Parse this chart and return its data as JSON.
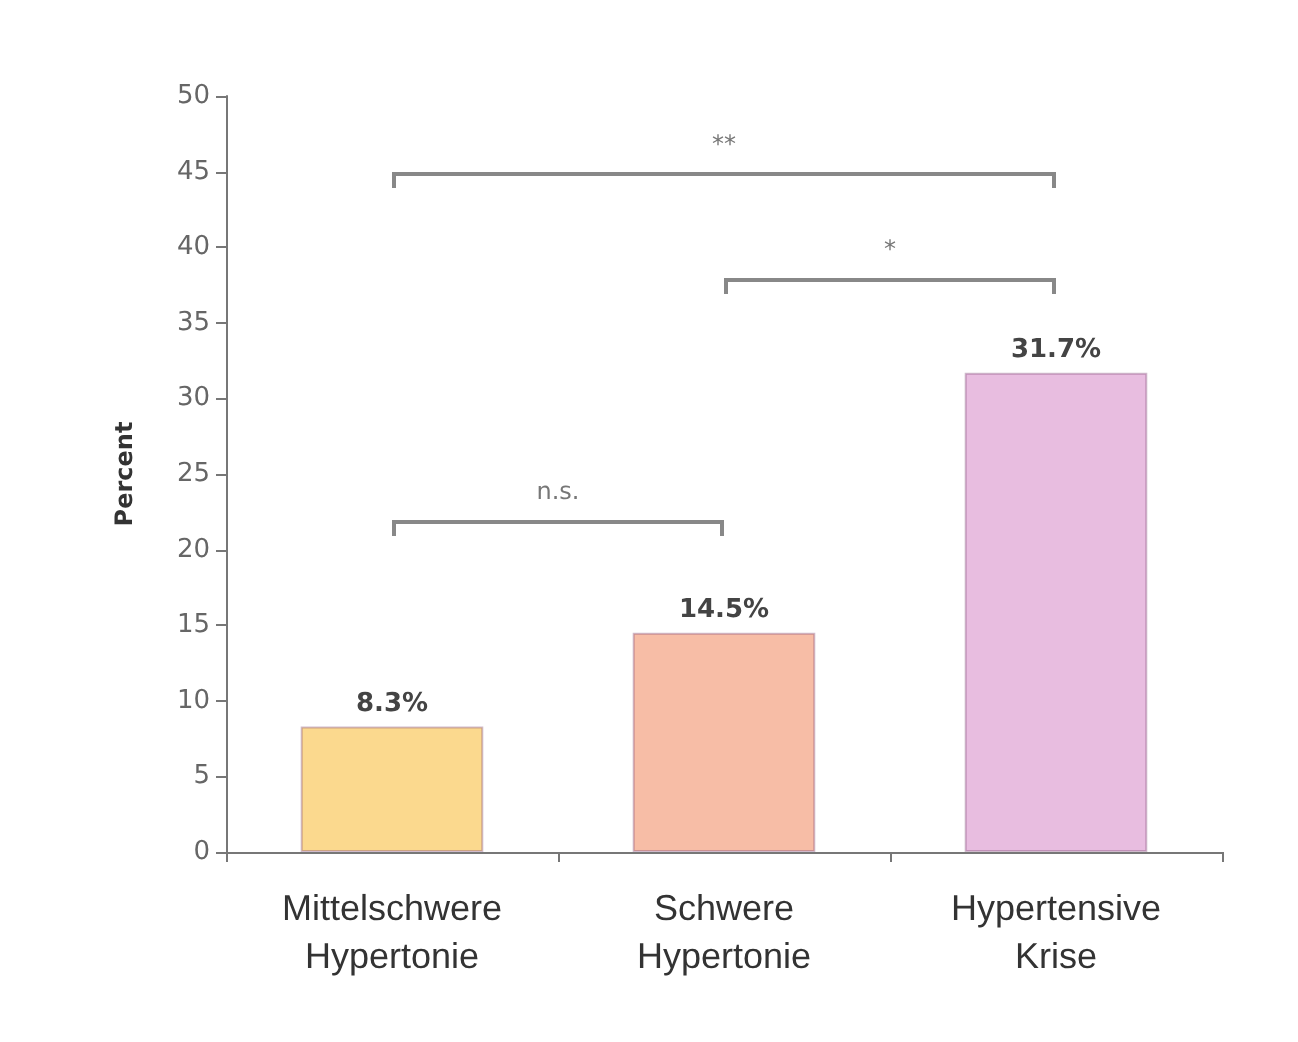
{
  "chart_data": {
    "type": "bar",
    "ylabel": "Percent",
    "categories": [
      "Mittelschwere\nHypertonie",
      "Schwere\nHypertonie",
      "Hypertensive\nKrise"
    ],
    "values": [
      8.3,
      14.5,
      31.7
    ],
    "colors": [
      "#fbd98e",
      "#f7bda6",
      "#e8bde0"
    ],
    "value_labels": [
      "8.3%",
      "14.5%",
      "31.7%"
    ],
    "ylim": [
      0,
      50
    ],
    "yticks": [
      0,
      5,
      10,
      15,
      20,
      25,
      30,
      35,
      40,
      45,
      50
    ],
    "annotations": [
      "n.s.",
      "*",
      "**"
    ]
  }
}
